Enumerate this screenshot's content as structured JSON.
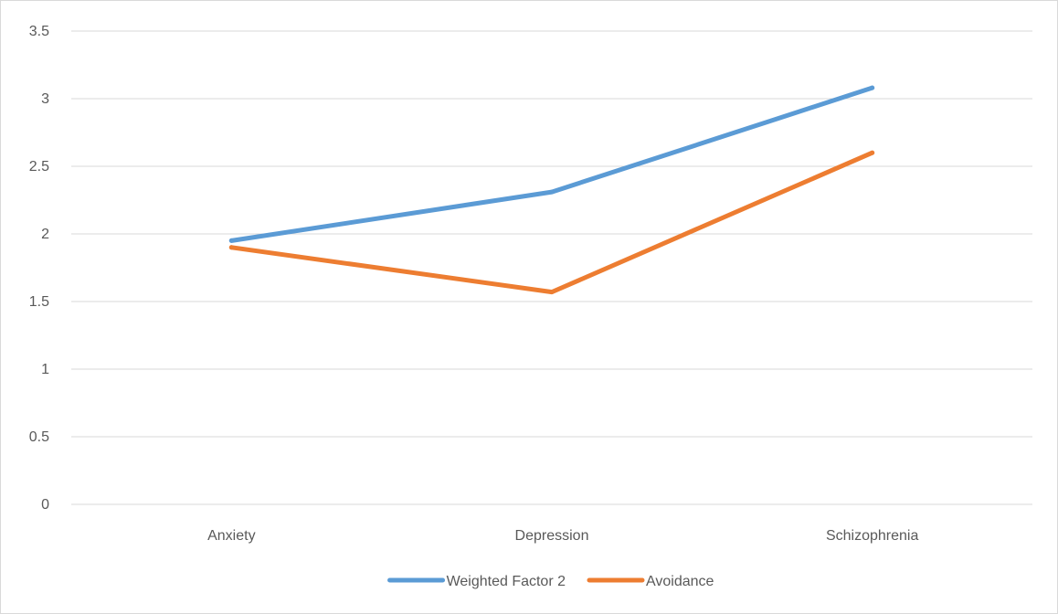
{
  "chart_data": {
    "type": "line",
    "title": "",
    "xlabel": "",
    "ylabel": "",
    "categories": [
      "Anxiety",
      "Depression",
      "Schizophrenia"
    ],
    "series": [
      {
        "name": "Weighted Factor 2",
        "color": "#5b9bd5",
        "values": [
          1.95,
          2.31,
          3.08
        ]
      },
      {
        "name": "Avoidance",
        "color": "#ed7d31",
        "values": [
          1.9,
          1.57,
          2.6
        ]
      }
    ],
    "ylim": [
      0,
      3.5
    ],
    "yticks": [
      "0",
      "0.5",
      "1",
      "1.5",
      "2",
      "2.5",
      "3",
      "3.5"
    ],
    "grid": true,
    "legend_position": "bottom"
  }
}
